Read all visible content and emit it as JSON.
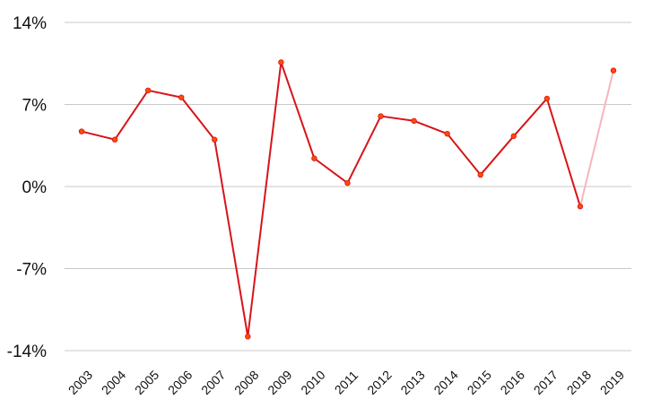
{
  "chart_data": {
    "type": "line",
    "title": "",
    "xlabel": "",
    "ylabel": "",
    "ylim": [
      -14,
      14
    ],
    "y_ticks": [
      14,
      7,
      0,
      -7,
      -14
    ],
    "y_tick_labels": [
      "14%",
      "7%",
      "0%",
      "-7%",
      "-14%"
    ],
    "grid": true,
    "x": [
      "2003",
      "2004",
      "2005",
      "2006",
      "2007",
      "2008",
      "2009",
      "2010",
      "2011",
      "2012",
      "2013",
      "2014",
      "2015",
      "2016",
      "2017",
      "2018",
      "2019"
    ],
    "series": [
      {
        "values": [
          4.7,
          4.0,
          8.2,
          7.6,
          4.0,
          -12.8,
          10.6,
          2.4,
          0.3,
          6.0,
          5.6,
          4.5,
          1.0,
          4.3,
          7.5,
          -1.7,
          9.9
        ],
        "color": "#d7141a",
        "marker_color": "#ff4d00",
        "last_segment_color": "#f4b6bd"
      }
    ]
  }
}
